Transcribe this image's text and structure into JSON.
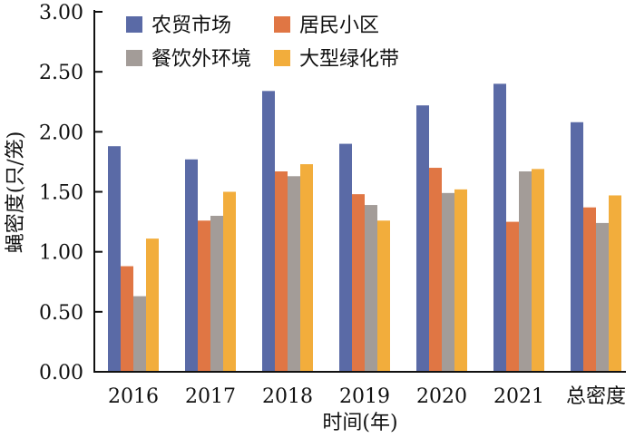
{
  "chart_data": {
    "type": "bar",
    "xlabel": "时间(年)",
    "ylabel": "蝇密度(只/笼)",
    "ylim": [
      0,
      3.0
    ],
    "yticks": [
      "0.00",
      "0.50",
      "1.00",
      "1.50",
      "2.00",
      "2.50",
      "3.00"
    ],
    "grid": false,
    "legend_placement": "top",
    "categories": [
      "2016",
      "2017",
      "2018",
      "2019",
      "2020",
      "2021",
      "总密度"
    ],
    "series": [
      {
        "name": "农贸市场",
        "color": "#5a6aa6",
        "values": [
          1.88,
          1.77,
          2.34,
          1.9,
          2.22,
          2.4,
          2.08
        ]
      },
      {
        "name": "居民小区",
        "color": "#e07644",
        "values": [
          0.88,
          1.26,
          1.67,
          1.48,
          1.7,
          1.25,
          1.37
        ]
      },
      {
        "name": "餐饮外环境",
        "color": "#a39c98",
        "values": [
          0.63,
          1.3,
          1.63,
          1.39,
          1.49,
          1.67,
          1.24
        ]
      },
      {
        "name": "大型绿化带",
        "color": "#f2ad3c",
        "values": [
          1.11,
          1.5,
          1.73,
          1.26,
          1.52,
          1.69,
          1.47
        ]
      }
    ]
  }
}
